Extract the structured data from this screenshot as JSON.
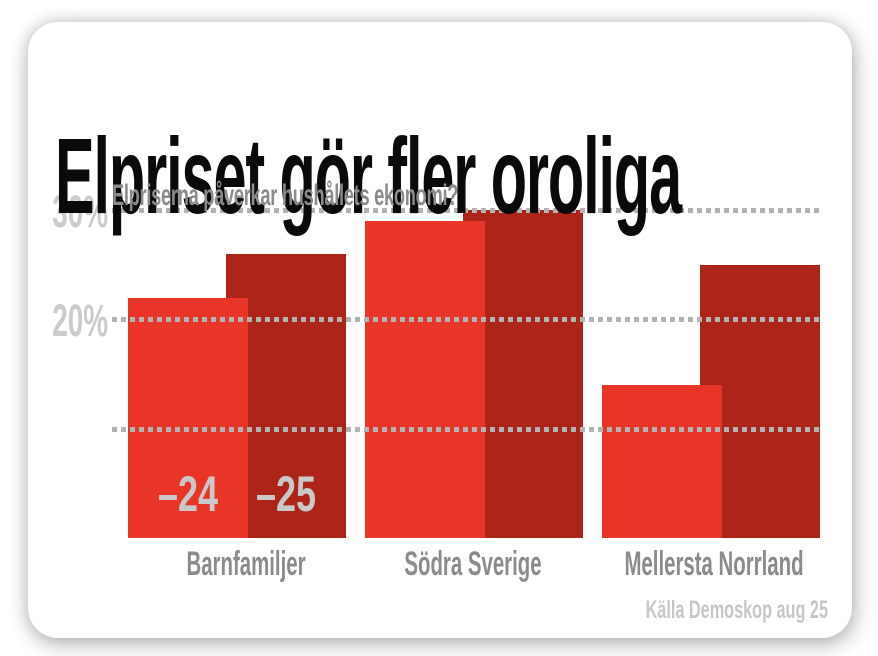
{
  "header": {
    "title": "Elpriset gör fler oroliga",
    "subtitle": "Elpriserna påverkar hushållets ekonomi?"
  },
  "footer": {
    "source": "Källa Demoskop aug 25"
  },
  "colors": {
    "title_text": "#0a0a0a",
    "subtitle_text": "#8b8b8b",
    "bar_2024": "#e93428",
    "bar_2025": "#ad2419",
    "grid_dots": "#b3b3b3",
    "y_axis_label": "#cbcbcb",
    "bar_value_label": "#c9c9c9",
    "category_label": "#8b8b8b",
    "source_text": "#c6c6c6",
    "card_bg": "#ffffff"
  },
  "chart_data": {
    "type": "bar",
    "title": "Elpriset gör fler oroliga",
    "subtitle": "Elpriserna påverkar hushållets ekonomi?",
    "categories": [
      "Barnfamiljer",
      "Södra Sverige",
      "Mellersta Norrland"
    ],
    "series": [
      {
        "name": "–24",
        "values": [
          22,
          29,
          14
        ],
        "color": "#e93428"
      },
      {
        "name": "–25",
        "values": [
          26,
          30,
          25
        ],
        "color": "#ad2419"
      }
    ],
    "unit": "%",
    "ylim": [
      0,
      32
    ],
    "yticks": [
      10,
      20,
      30
    ],
    "ytick_labels": [
      "",
      "20%",
      "30%"
    ],
    "grid": "horizontal-dotted",
    "legend": "series names shown as labels on first category's bars",
    "source": "Källa Demoskop aug 25"
  }
}
